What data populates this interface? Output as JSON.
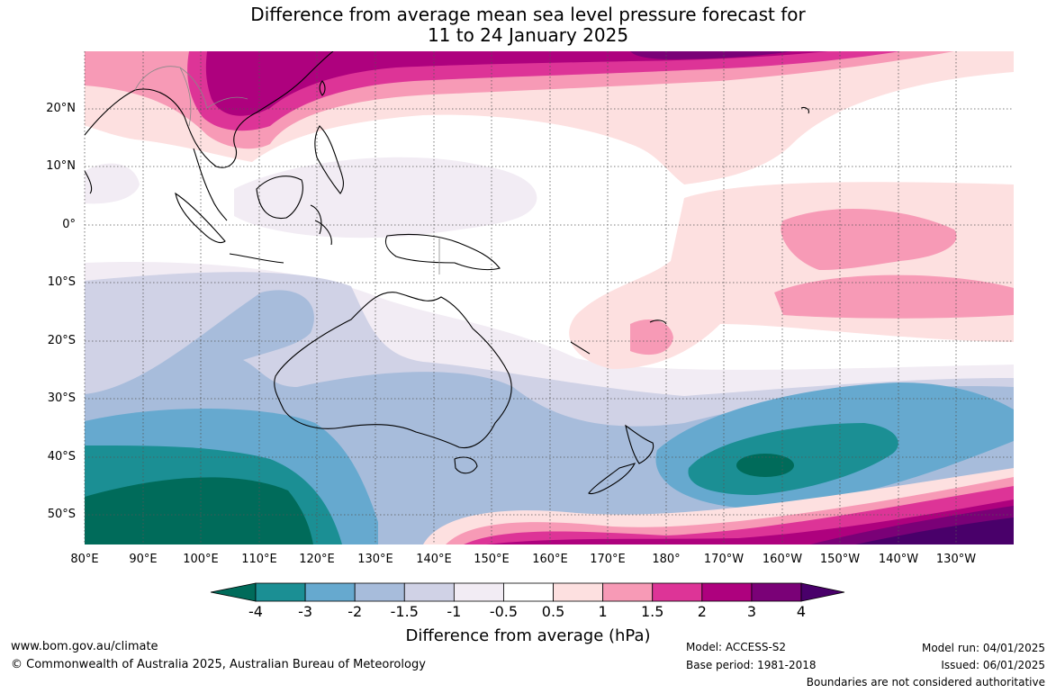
{
  "title": {
    "line1": "Difference from average mean sea level pressure forecast for",
    "line2": "11 to 24 January 2025"
  },
  "latitude_labels": [
    "20°N",
    "10°N",
    "0°",
    "10°S",
    "20°S",
    "30°S",
    "40°S",
    "50°S"
  ],
  "longitude_labels": [
    "80°E",
    "90°E",
    "100°E",
    "110°E",
    "120°E",
    "130°E",
    "140°E",
    "150°E",
    "160°E",
    "170°E",
    "180°",
    "170°W",
    "160°W",
    "150°W",
    "140°W",
    "130°W"
  ],
  "colorbar": {
    "title": "Difference from average (hPa)",
    "ticks": [
      "-4",
      "-3",
      "-2",
      "-1.5",
      "-1",
      "-0.5",
      "0.5",
      "1",
      "1.5",
      "2",
      "3",
      "4"
    ],
    "colors": [
      "#006b5a",
      "#1b8f94",
      "#66a9cf",
      "#a7bcdb",
      "#d0d2e6",
      "#f2ecf4",
      "#ffffff",
      "#fde0e0",
      "#f79ab6",
      "#dd3497",
      "#ae017e",
      "#7a0177",
      "#49006a"
    ]
  },
  "footer": {
    "website": "www.bom.gov.au/climate",
    "copyright": "© Commonwealth of Australia 2025, Australian Bureau of Meteorology",
    "model": "Model: ACCESS-S2",
    "base_period": "Base period: 1981-2018",
    "model_run": "Model run: 04/01/2025",
    "issued": "Issued: 06/01/2025",
    "disclaimer": "Boundaries are not considered authoritative"
  }
}
